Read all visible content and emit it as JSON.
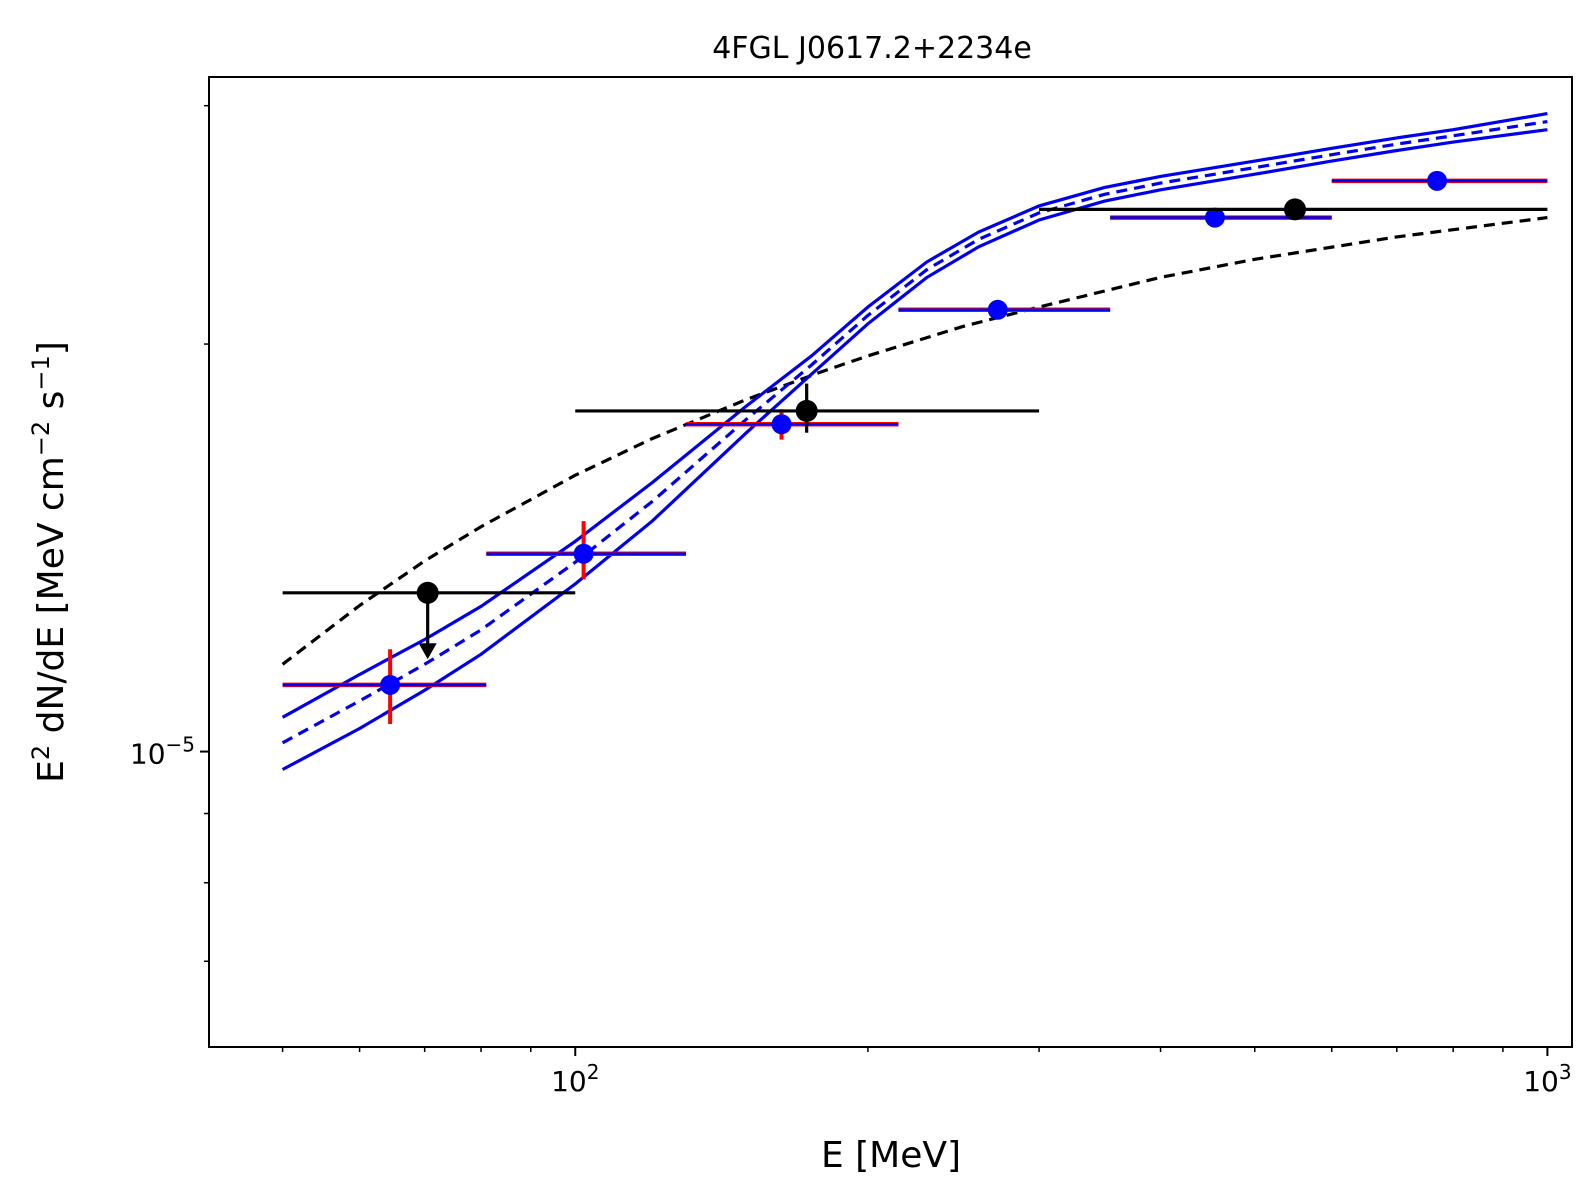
{
  "chart_data": {
    "type": "line",
    "title": "4FGL J0617.2+2234e",
    "xlabel": "E [MeV]",
    "ylabel_main": "E",
    "ylabel_sup1": "2",
    "ylabel_mid": " dN/dE [MeV cm",
    "ylabel_sup2": "−2",
    "ylabel_mid2": " s",
    "ylabel_sup3": "−1",
    "ylabel_end": "]",
    "x_scale": "log",
    "y_scale": "log",
    "xlim": [
      42,
      1060
    ],
    "ylim": [
      6.05e-06,
      3.15e-05
    ],
    "x_ticks": [
      {
        "value": 100,
        "base": "10",
        "exp": "2"
      },
      {
        "value": 1000,
        "base": "10",
        "exp": "3"
      }
    ],
    "y_ticks": [
      {
        "value": 1e-05,
        "base": "10",
        "exp": "−5"
      }
    ],
    "series": [
      {
        "style": "dashed",
        "color": "#000000",
        "x": [
          50,
          60,
          70,
          80,
          100,
          120,
          150,
          180,
          200,
          250,
          300,
          400,
          500,
          700,
          1000
        ],
        "y": [
          1.16e-05,
          1.282e-05,
          1.383e-05,
          1.466e-05,
          1.6e-05,
          1.703e-05,
          1.82e-05,
          1.91e-05,
          1.96e-05,
          2.06e-05,
          2.13e-05,
          2.24e-05,
          2.31e-05,
          2.4e-05,
          2.48e-05
        ]
      },
      {
        "style": "dashed",
        "color": "#0000ee",
        "x": [
          50,
          60,
          70,
          80,
          100,
          120,
          150,
          175,
          200,
          230,
          260,
          300,
          350,
          400,
          500,
          600,
          700,
          800,
          1000
        ],
        "y": [
          1.015e-05,
          1.09e-05,
          1.16e-05,
          1.23e-05,
          1.38e-05,
          1.53e-05,
          1.76e-05,
          1.93e-05,
          2.1e-05,
          2.27e-05,
          2.39e-05,
          2.5e-05,
          2.58e-05,
          2.63e-05,
          2.7e-05,
          2.76e-05,
          2.81e-05,
          2.85e-05,
          2.92e-05
        ]
      },
      {
        "style": "solid",
        "color": "#0000ee",
        "x": [
          50,
          60,
          70,
          80,
          100,
          120,
          150,
          175,
          200,
          230,
          260,
          300,
          350,
          400,
          500,
          600,
          700,
          800,
          1000
        ],
        "y": [
          1.06e-05,
          1.14e-05,
          1.21e-05,
          1.28e-05,
          1.43e-05,
          1.58e-05,
          1.8e-05,
          1.96e-05,
          2.13e-05,
          2.3e-05,
          2.42e-05,
          2.53e-05,
          2.61e-05,
          2.66e-05,
          2.73e-05,
          2.79e-05,
          2.84e-05,
          2.88e-05,
          2.96e-05
        ]
      },
      {
        "style": "solid",
        "color": "#0000ee",
        "x": [
          50,
          60,
          70,
          80,
          100,
          120,
          150,
          175,
          200,
          230,
          260,
          300,
          350,
          400,
          500,
          600,
          700,
          800,
          1000
        ],
        "y": [
          9.7e-06,
          1.04e-05,
          1.11e-05,
          1.18e-05,
          1.33e-05,
          1.48e-05,
          1.72e-05,
          1.9e-05,
          2.07e-05,
          2.24e-05,
          2.36e-05,
          2.47e-05,
          2.55e-05,
          2.6e-05,
          2.67e-05,
          2.73e-05,
          2.78e-05,
          2.82e-05,
          2.88e-05
        ]
      }
    ],
    "points_blue": [
      {
        "x": 64.5,
        "y": 1.12e-05,
        "xlo": 50,
        "xhi": 81,
        "ylo": 1.048e-05,
        "yhi": 1.19e-05
      },
      {
        "x": 102,
        "y": 1.4e-05,
        "xlo": 81,
        "xhi": 130,
        "ylo": 1.34e-05,
        "yhi": 1.48e-05
      },
      {
        "x": 163,
        "y": 1.745e-05,
        "xlo": 130,
        "xhi": 215,
        "ylo": 1.7e-05,
        "yhi": 1.79e-05
      },
      {
        "x": 272,
        "y": 2.12e-05,
        "xlo": 215,
        "xhi": 355,
        "ylo": 2.1e-05,
        "yhi": 2.14e-05
      },
      {
        "x": 455,
        "y": 2.48e-05,
        "xlo": 355,
        "xhi": 600,
        "ylo": 2.46e-05,
        "yhi": 2.5e-05
      },
      {
        "x": 770,
        "y": 2.64e-05,
        "xlo": 600,
        "xhi": 1000,
        "ylo": 2.62e-05,
        "yhi": 2.66e-05
      }
    ],
    "points_black": [
      {
        "x": 70.5,
        "y": 1.31e-05,
        "xlo": 50,
        "xhi": 100,
        "upper_limit": true,
        "arrow_to": 1.17e-05
      },
      {
        "x": 173,
        "y": 1.785e-05,
        "xlo": 100,
        "xhi": 300,
        "ylo": 1.72e-05,
        "yhi": 1.87e-05
      },
      {
        "x": 550,
        "y": 2.515e-05,
        "xlo": 300,
        "xhi": 1000
      }
    ]
  }
}
